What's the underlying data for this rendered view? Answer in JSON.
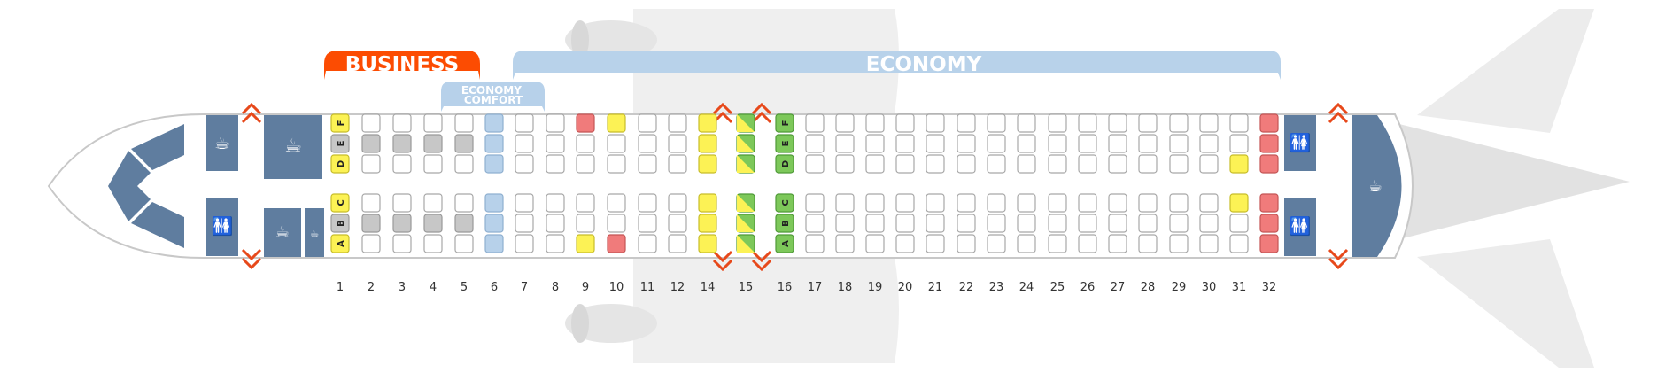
{
  "title": "",
  "cabins": {
    "business": "BUSINESS",
    "economy_comfort": "ECONOMY\nCOMFORT",
    "economy": "ECONOMY"
  },
  "row_numbers": [
    "1",
    "2",
    "3",
    "4",
    "5",
    "6",
    "7",
    "8",
    "9",
    "10",
    "11",
    "12",
    "14",
    "15",
    "16",
    "17",
    "18",
    "19",
    "20",
    "21",
    "22",
    "23",
    "24",
    "25",
    "26",
    "27",
    "28",
    "29",
    "30",
    "31",
    "32"
  ],
  "seat_letters": {
    "row1_left": [
      "A",
      "B",
      "C"
    ],
    "row1_right": [
      "D",
      "E",
      "F"
    ],
    "row16_left": [
      "A",
      "B",
      "C"
    ],
    "row16_right": [
      "D",
      "E",
      "F"
    ]
  },
  "legend_colors": {
    "business": "#fc4c02",
    "economy_comfort_band": "#b7d1ea",
    "economy_band": "#b8d2ea",
    "standard_seat": "#ffffff",
    "blocked_business_seat": "#c7c7c7",
    "yellow_seat": "#fcf255",
    "red_seat": "#f07b7b",
    "exit_row_green": "#7dc85a",
    "facility_blue": "#5f7d9f",
    "exit_arrow": "#e7491b"
  },
  "icons": {
    "galley": "cup-icon",
    "lavatory": "lavatory-icon",
    "exit": "exit-arrow-icon"
  },
  "seat_status_notes": {
    "yellow": [
      "1A",
      "1C",
      "1D",
      "1F",
      "9A",
      "10F",
      "14A",
      "14B",
      "14C",
      "14D",
      "14E",
      "14F",
      "31C",
      "31D"
    ],
    "red": [
      "9F",
      "10A",
      "32A",
      "32B",
      "32C",
      "32D",
      "32E",
      "32F"
    ],
    "blocked_middle": [
      "1B",
      "1E",
      "2B",
      "2E",
      "3B",
      "3E",
      "4B",
      "4E",
      "5B",
      "5E"
    ],
    "exit_row_green": [
      "16A",
      "16B",
      "16C",
      "16D",
      "16E",
      "16F"
    ],
    "no_recline_striped": [
      "15A",
      "15B",
      "15C",
      "15D",
      "15E",
      "15F"
    ],
    "economy_comfort_row": [
      "6A",
      "6B",
      "6C",
      "6D",
      "6E",
      "6F"
    ]
  }
}
